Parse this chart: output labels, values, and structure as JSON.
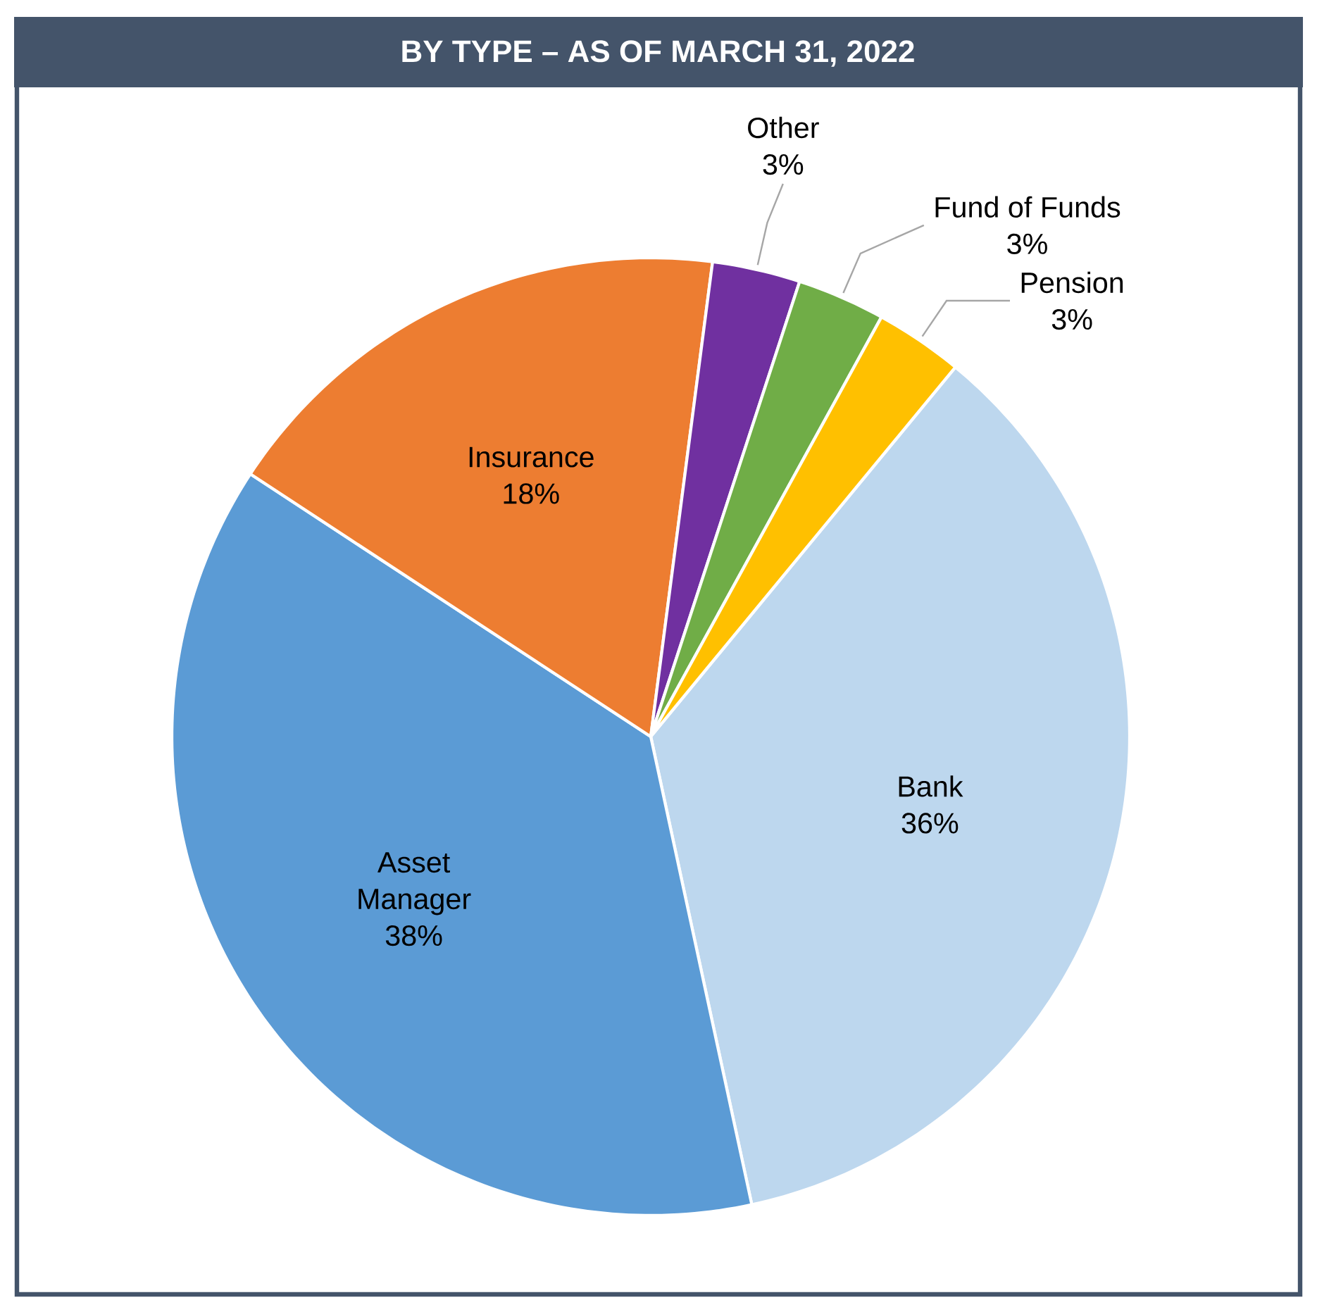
{
  "chart_data": {
    "type": "pie",
    "title": "BY TYPE – AS OF MARCH 31, 2022",
    "categories": [
      "Bank",
      "Asset Manager",
      "Insurance",
      "Other",
      "Fund of Funds",
      "Pension"
    ],
    "values": [
      36,
      38,
      18,
      3,
      3,
      3
    ],
    "colors": [
      "#bdd7ee",
      "#5b9bd5",
      "#ed7d31",
      "#7030a0",
      "#70ad47",
      "#ffc000"
    ],
    "value_labels": [
      "36%",
      "38%",
      "18%",
      "3%",
      "3%",
      "3%"
    ]
  }
}
